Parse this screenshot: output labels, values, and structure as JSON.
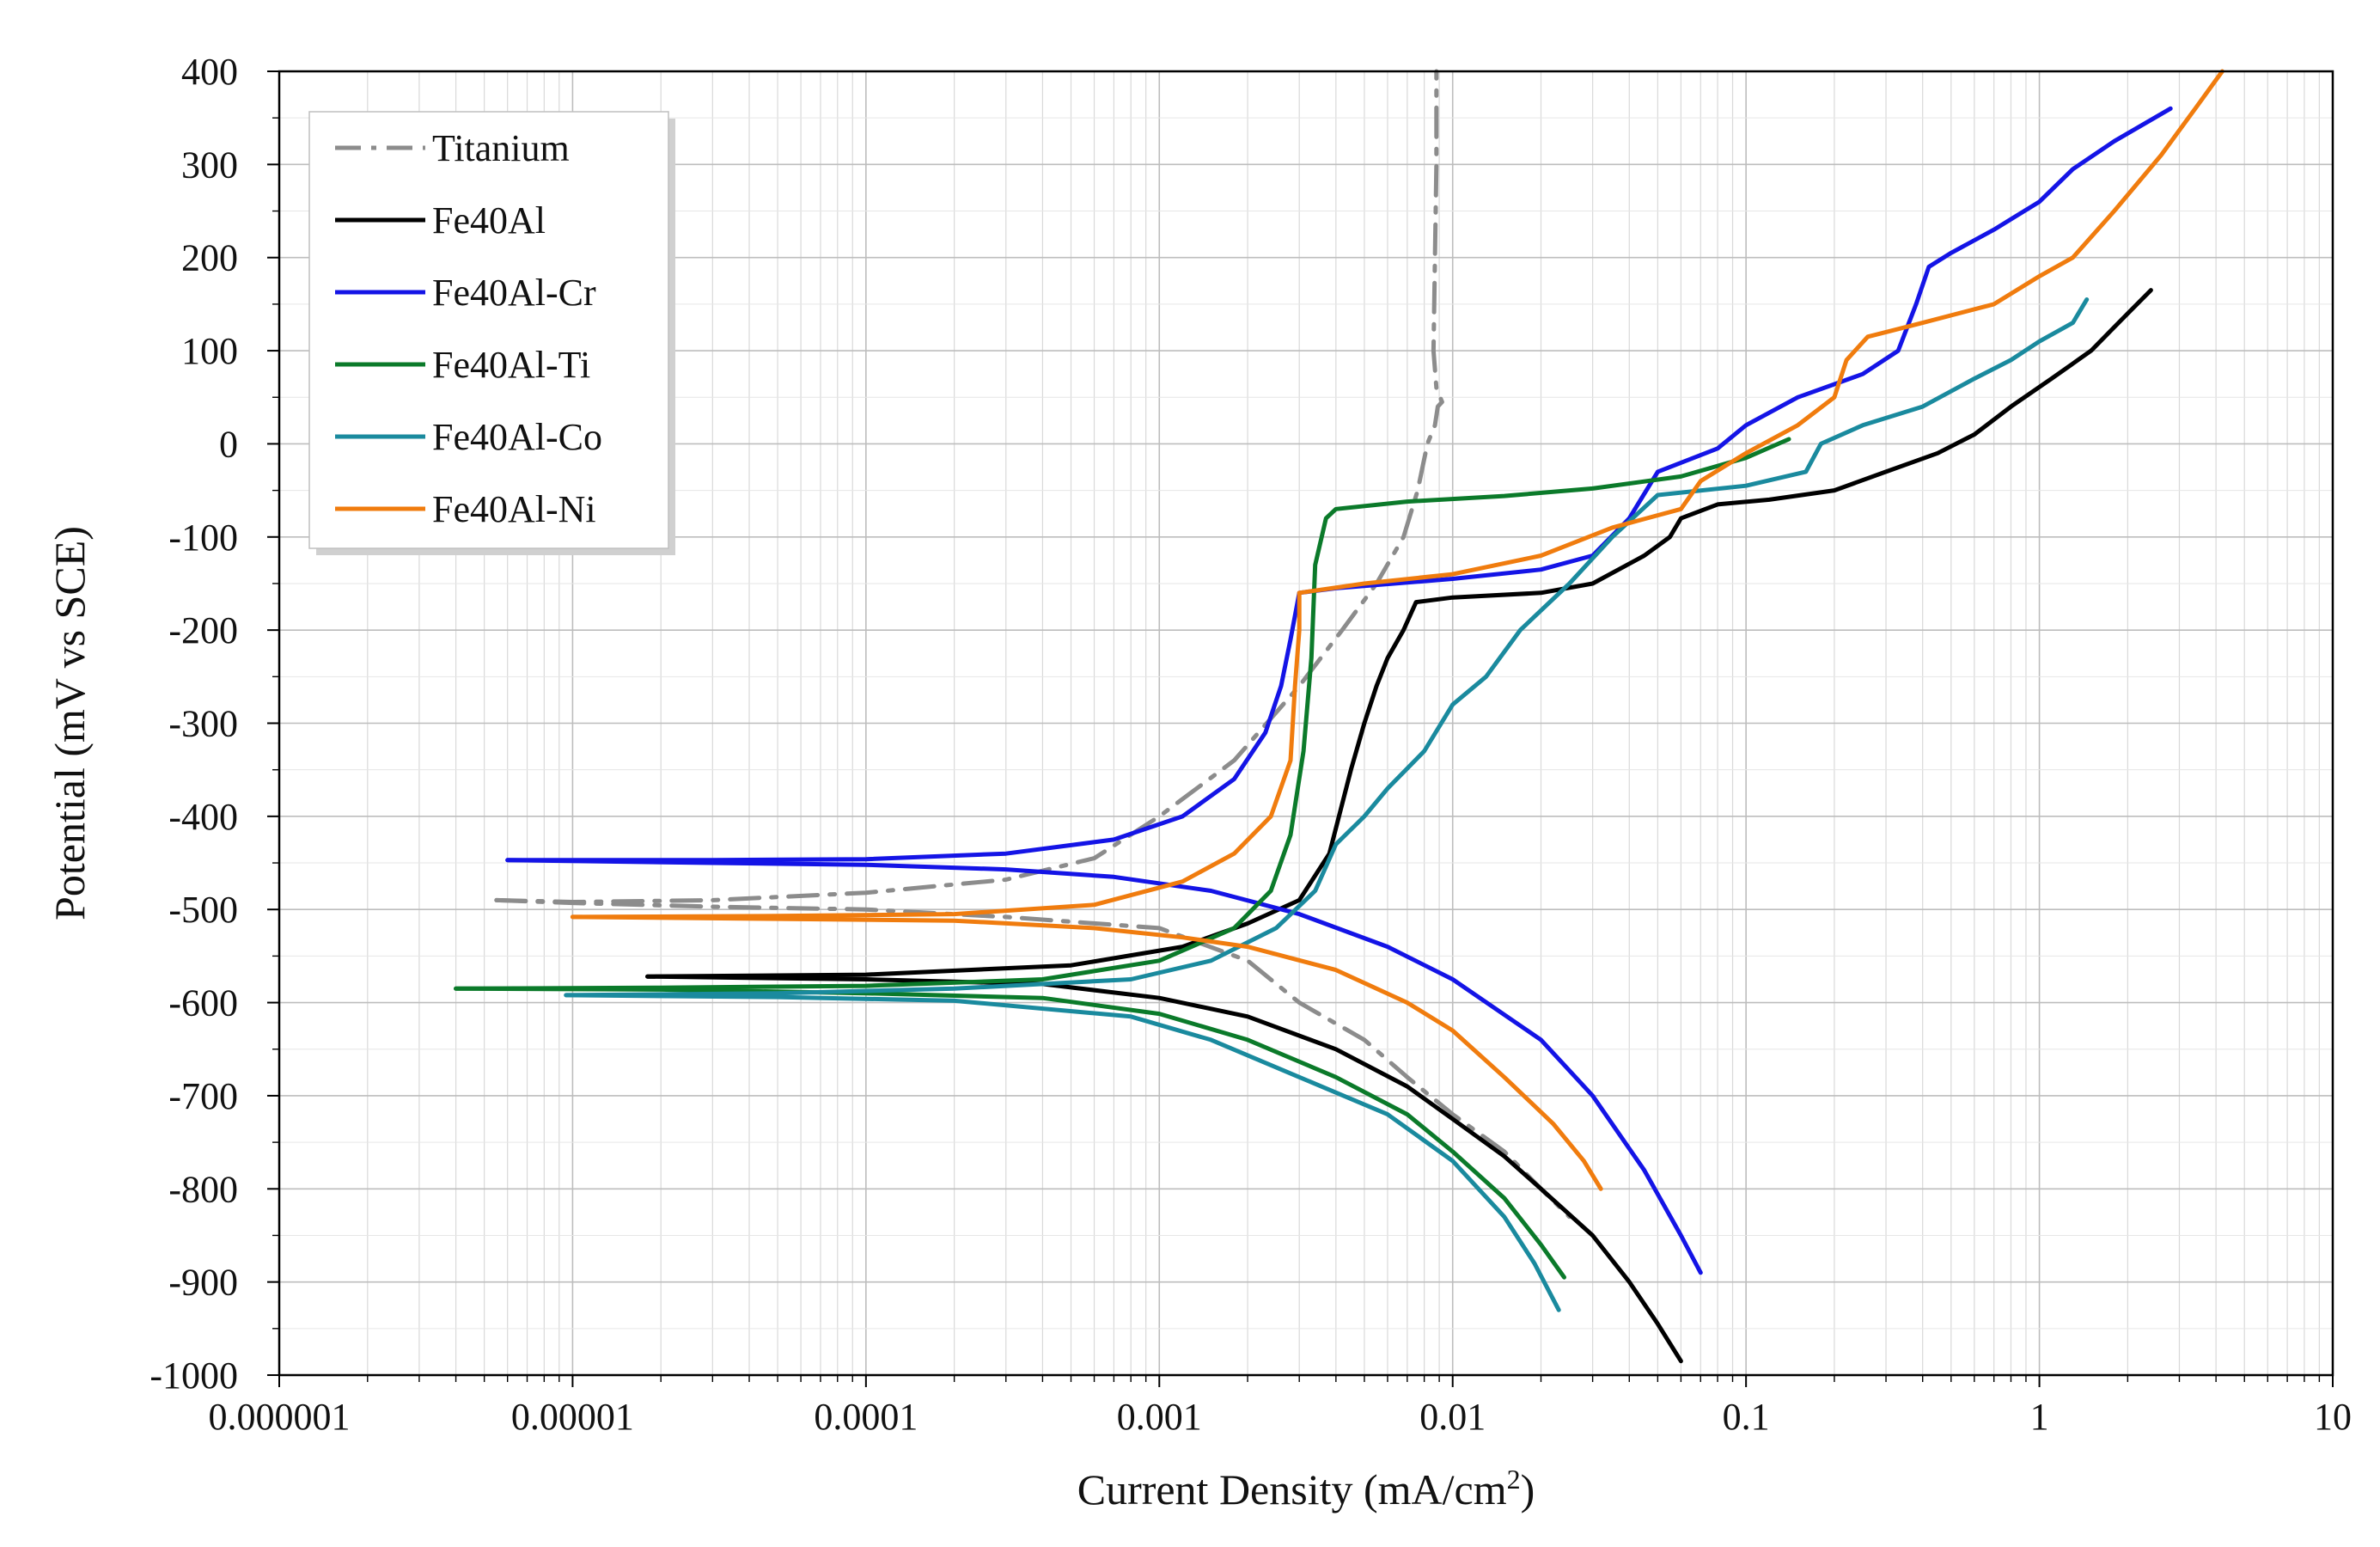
{
  "chart_data": {
    "type": "line",
    "title": "",
    "xlabel": "Current Density (mA/cm",
    "xlabel_sup": "2",
    "xlabel_end": ")",
    "ylabel": "Potential (mV vs SCE)",
    "xscale": "log",
    "xlim": [
      1e-06,
      10
    ],
    "ylim": [
      -1000,
      400
    ],
    "grid": true,
    "legend_position": "top-left",
    "x_ticks": [
      {
        "value": 1e-06,
        "label": "0.000001"
      },
      {
        "value": 1e-05,
        "label": "0.00001"
      },
      {
        "value": 0.0001,
        "label": "0.0001"
      },
      {
        "value": 0.001,
        "label": "0.001"
      },
      {
        "value": 0.01,
        "label": "0.01"
      },
      {
        "value": 0.1,
        "label": "0.1"
      },
      {
        "value": 1,
        "label": "1"
      },
      {
        "value": 10,
        "label": "10"
      }
    ],
    "y_ticks": [
      {
        "value": 400,
        "label": "400"
      },
      {
        "value": 300,
        "label": "300"
      },
      {
        "value": 200,
        "label": "200"
      },
      {
        "value": 100,
        "label": "100"
      },
      {
        "value": 0,
        "label": "0"
      },
      {
        "value": -100,
        "label": "-100"
      },
      {
        "value": -200,
        "label": "-200"
      },
      {
        "value": -300,
        "label": "-300"
      },
      {
        "value": -400,
        "label": "-400"
      },
      {
        "value": -500,
        "label": "-500"
      },
      {
        "value": -600,
        "label": "-600"
      },
      {
        "value": -700,
        "label": "-700"
      },
      {
        "value": -800,
        "label": "-800"
      },
      {
        "value": -900,
        "label": "-900"
      },
      {
        "value": -1000,
        "label": "-1000"
      }
    ],
    "series": [
      {
        "name": "Titanium",
        "color": "#8c8c8c",
        "dash": "dashdot",
        "points": [
          [
            5.5e-06,
            -490
          ],
          [
            1e-05,
            -492
          ],
          [
            3e-05,
            -490
          ],
          [
            0.0001,
            -482
          ],
          [
            0.0003,
            -468
          ],
          [
            0.0006,
            -445
          ],
          [
            0.001,
            -400
          ],
          [
            0.0018,
            -340
          ],
          [
            0.003,
            -260
          ],
          [
            0.0042,
            -200
          ],
          [
            0.0055,
            -150
          ],
          [
            0.0068,
            -100
          ],
          [
            0.0076,
            -50
          ],
          [
            0.0082,
            0
          ],
          [
            0.0087,
            20
          ],
          [
            0.0089,
            40
          ],
          [
            0.0092,
            45
          ],
          [
            0.0088,
            60
          ],
          [
            0.0086,
            100
          ],
          [
            0.0087,
            200
          ],
          [
            0.0088,
            300
          ],
          [
            0.0088,
            400
          ]
        ],
        "points_cathodic": [
          [
            5.5e-06,
            -490
          ],
          [
            1e-05,
            -493
          ],
          [
            3e-05,
            -497
          ],
          [
            0.0001,
            -500
          ],
          [
            0.0003,
            -508
          ],
          [
            0.001,
            -520
          ],
          [
            0.002,
            -555
          ],
          [
            0.003,
            -600
          ],
          [
            0.005,
            -640
          ],
          [
            0.007,
            -680
          ],
          [
            0.01,
            -720
          ],
          [
            0.015,
            -760
          ],
          [
            0.02,
            -800
          ],
          [
            0.025,
            -830
          ]
        ]
      },
      {
        "name": "Fe40Al",
        "color": "#000000",
        "dash": "solid",
        "points": [
          [
            1.8e-05,
            -572
          ],
          [
            0.0001,
            -570
          ],
          [
            0.0005,
            -560
          ],
          [
            0.0012,
            -540
          ],
          [
            0.002,
            -515
          ],
          [
            0.003,
            -490
          ],
          [
            0.0038,
            -440
          ],
          [
            0.0045,
            -350
          ],
          [
            0.005,
            -300
          ],
          [
            0.0055,
            -260
          ],
          [
            0.006,
            -230
          ],
          [
            0.0068,
            -200
          ],
          [
            0.0075,
            -170
          ],
          [
            0.01,
            -165
          ],
          [
            0.02,
            -160
          ],
          [
            0.03,
            -150
          ],
          [
            0.045,
            -120
          ],
          [
            0.055,
            -100
          ],
          [
            0.06,
            -80
          ],
          [
            0.08,
            -65
          ],
          [
            0.12,
            -60
          ],
          [
            0.2,
            -50
          ],
          [
            0.3,
            -30
          ],
          [
            0.45,
            -10
          ],
          [
            0.6,
            10
          ],
          [
            0.8,
            40
          ],
          [
            1.1,
            70
          ],
          [
            1.5,
            100
          ],
          [
            2,
            140
          ],
          [
            2.4,
            165
          ]
        ],
        "points_cathodic": [
          [
            1.8e-05,
            -572
          ],
          [
            0.0001,
            -575
          ],
          [
            0.0004,
            -580
          ],
          [
            0.001,
            -595
          ],
          [
            0.002,
            -615
          ],
          [
            0.004,
            -650
          ],
          [
            0.007,
            -690
          ],
          [
            0.01,
            -725
          ],
          [
            0.015,
            -765
          ],
          [
            0.02,
            -800
          ],
          [
            0.03,
            -850
          ],
          [
            0.04,
            -900
          ],
          [
            0.05,
            -945
          ],
          [
            0.06,
            -985
          ]
        ]
      },
      {
        "name": "Fe40Al-Cr",
        "color": "#1414e6",
        "dash": "solid",
        "points": [
          [
            6e-06,
            -447
          ],
          [
            3e-05,
            -447
          ],
          [
            0.0001,
            -446
          ],
          [
            0.0003,
            -440
          ],
          [
            0.0007,
            -425
          ],
          [
            0.0012,
            -400
          ],
          [
            0.0018,
            -360
          ],
          [
            0.0023,
            -310
          ],
          [
            0.0026,
            -260
          ],
          [
            0.0028,
            -210
          ],
          [
            0.003,
            -160
          ],
          [
            0.004,
            -155
          ],
          [
            0.01,
            -145
          ],
          [
            0.02,
            -135
          ],
          [
            0.03,
            -120
          ],
          [
            0.04,
            -80
          ],
          [
            0.05,
            -30
          ],
          [
            0.08,
            -5
          ],
          [
            0.1,
            20
          ],
          [
            0.15,
            50
          ],
          [
            0.25,
            75
          ],
          [
            0.33,
            100
          ],
          [
            0.38,
            150
          ],
          [
            0.42,
            190
          ],
          [
            0.5,
            205
          ],
          [
            0.7,
            230
          ],
          [
            1,
            260
          ],
          [
            1.3,
            295
          ],
          [
            1.8,
            325
          ],
          [
            2.8,
            360
          ]
        ],
        "points_cathodic": [
          [
            6e-06,
            -447
          ],
          [
            3e-05,
            -450
          ],
          [
            0.0001,
            -452
          ],
          [
            0.0003,
            -457
          ],
          [
            0.0007,
            -465
          ],
          [
            0.0015,
            -480
          ],
          [
            0.003,
            -505
          ],
          [
            0.006,
            -540
          ],
          [
            0.01,
            -575
          ],
          [
            0.02,
            -640
          ],
          [
            0.03,
            -700
          ],
          [
            0.045,
            -780
          ],
          [
            0.06,
            -850
          ],
          [
            0.07,
            -890
          ]
        ]
      },
      {
        "name": "Fe40Al-Ti",
        "color": "#0b7a2a",
        "dash": "solid",
        "points": [
          [
            4e-06,
            -585
          ],
          [
            2e-05,
            -584
          ],
          [
            0.0001,
            -582
          ],
          [
            0.0004,
            -575
          ],
          [
            0.001,
            -555
          ],
          [
            0.0018,
            -520
          ],
          [
            0.0024,
            -480
          ],
          [
            0.0028,
            -420
          ],
          [
            0.0031,
            -330
          ],
          [
            0.0033,
            -230
          ],
          [
            0.0034,
            -130
          ],
          [
            0.0037,
            -80
          ],
          [
            0.004,
            -70
          ],
          [
            0.007,
            -62
          ],
          [
            0.015,
            -56
          ],
          [
            0.03,
            -48
          ],
          [
            0.06,
            -35
          ],
          [
            0.1,
            -15
          ],
          [
            0.14,
            5
          ]
        ],
        "points_cathodic": [
          [
            4e-06,
            -585
          ],
          [
            2e-05,
            -586
          ],
          [
            0.0001,
            -590
          ],
          [
            0.0004,
            -595
          ],
          [
            0.001,
            -612
          ],
          [
            0.002,
            -640
          ],
          [
            0.004,
            -680
          ],
          [
            0.007,
            -720
          ],
          [
            0.01,
            -760
          ],
          [
            0.015,
            -810
          ],
          [
            0.02,
            -860
          ],
          [
            0.024,
            -895
          ]
        ]
      },
      {
        "name": "Fe40Al-Co",
        "color": "#1a8a9e",
        "dash": "solid",
        "points": [
          [
            9.5e-06,
            -592
          ],
          [
            5e-05,
            -590
          ],
          [
            0.0002,
            -585
          ],
          [
            0.0008,
            -575
          ],
          [
            0.0015,
            -555
          ],
          [
            0.0025,
            -520
          ],
          [
            0.0034,
            -480
          ],
          [
            0.004,
            -430
          ],
          [
            0.005,
            -400
          ],
          [
            0.006,
            -370
          ],
          [
            0.008,
            -330
          ],
          [
            0.01,
            -280
          ],
          [
            0.013,
            -250
          ],
          [
            0.017,
            -200
          ],
          [
            0.025,
            -150
          ],
          [
            0.035,
            -100
          ],
          [
            0.05,
            -55
          ],
          [
            0.1,
            -45
          ],
          [
            0.16,
            -30
          ],
          [
            0.18,
            0
          ],
          [
            0.25,
            20
          ],
          [
            0.4,
            40
          ],
          [
            0.6,
            70
          ],
          [
            0.8,
            90
          ],
          [
            1,
            110
          ],
          [
            1.3,
            130
          ],
          [
            1.45,
            155
          ]
        ],
        "points_cathodic": [
          [
            9.5e-06,
            -592
          ],
          [
            5e-05,
            -594
          ],
          [
            0.0002,
            -598
          ],
          [
            0.0008,
            -615
          ],
          [
            0.0015,
            -640
          ],
          [
            0.003,
            -680
          ],
          [
            0.006,
            -720
          ],
          [
            0.01,
            -770
          ],
          [
            0.015,
            -830
          ],
          [
            0.019,
            -880
          ],
          [
            0.023,
            -930
          ]
        ]
      },
      {
        "name": "Fe40Al-Ni",
        "color": "#f07c0e",
        "dash": "solid",
        "points": [
          [
            1e-05,
            -508
          ],
          [
            5e-05,
            -507
          ],
          [
            0.0002,
            -505
          ],
          [
            0.0006,
            -495
          ],
          [
            0.0012,
            -470
          ],
          [
            0.0018,
            -440
          ],
          [
            0.0024,
            -400
          ],
          [
            0.0028,
            -340
          ],
          [
            0.0029,
            -260
          ],
          [
            0.003,
            -200
          ],
          [
            0.003,
            -160
          ],
          [
            0.005,
            -150
          ],
          [
            0.01,
            -140
          ],
          [
            0.02,
            -120
          ],
          [
            0.035,
            -90
          ],
          [
            0.06,
            -70
          ],
          [
            0.07,
            -40
          ],
          [
            0.1,
            -10
          ],
          [
            0.15,
            20
          ],
          [
            0.2,
            50
          ],
          [
            0.22,
            90
          ],
          [
            0.26,
            115
          ],
          [
            0.4,
            130
          ],
          [
            0.7,
            150
          ],
          [
            1,
            180
          ],
          [
            1.3,
            200
          ],
          [
            1.8,
            250
          ],
          [
            2.6,
            310
          ],
          [
            3.4,
            360
          ],
          [
            4.2,
            400
          ]
        ],
        "points_cathodic": [
          [
            1e-05,
            -508
          ],
          [
            5e-05,
            -510
          ],
          [
            0.0002,
            -512
          ],
          [
            0.0006,
            -520
          ],
          [
            0.0012,
            -530
          ],
          [
            0.002,
            -540
          ],
          [
            0.004,
            -565
          ],
          [
            0.007,
            -600
          ],
          [
            0.01,
            -630
          ],
          [
            0.015,
            -680
          ],
          [
            0.022,
            -730
          ],
          [
            0.028,
            -770
          ],
          [
            0.032,
            -800
          ]
        ]
      }
    ]
  }
}
